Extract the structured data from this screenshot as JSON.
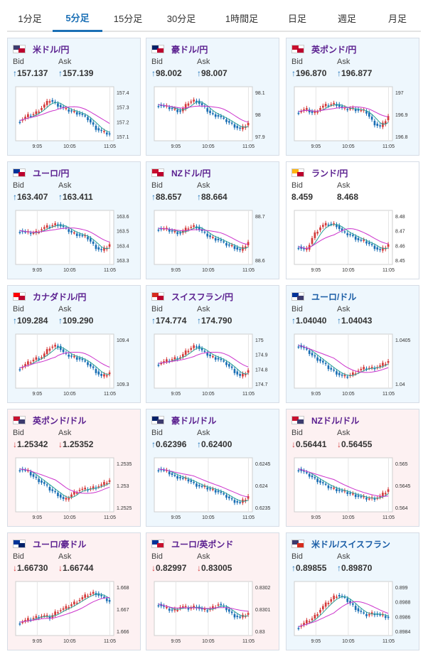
{
  "tabs": [
    {
      "label": "1分足",
      "active": false
    },
    {
      "label": "5分足",
      "active": true
    },
    {
      "label": "15分足",
      "active": false
    },
    {
      "label": "30分足",
      "active": false
    },
    {
      "label": "1時間足",
      "active": false
    },
    {
      "label": "日足",
      "active": false
    },
    {
      "label": "週足",
      "active": false
    },
    {
      "label": "月足",
      "active": false
    }
  ],
  "bid_label": "Bid",
  "ask_label": "Ask",
  "x_ticks": [
    "9:05",
    "10:05",
    "11:05"
  ],
  "colors": {
    "up": "#1a6fb5",
    "down": "#d43a3a",
    "ma_short": "#2aa198",
    "ma_long": "#cc33cc"
  },
  "cards": [
    {
      "pair": "米ドル/円",
      "flag": "us-jp-flag-icon",
      "dir": "up",
      "bid": "157.137",
      "ask": "157.139",
      "y_ticks": [
        "157.4",
        "157.3",
        "157.2",
        "157.1"
      ],
      "trend": [
        0.35,
        0.45,
        0.5,
        0.65,
        0.8,
        0.7,
        0.6,
        0.55,
        0.5,
        0.4,
        0.2,
        0.1,
        0.05
      ]
    },
    {
      "pair": "豪ドル/円",
      "flag": "au-jp-flag-icon",
      "dir": "up",
      "bid": "98.002",
      "ask": "98.007",
      "y_ticks": [
        "98.1",
        "98",
        "97.9"
      ],
      "trend": [
        0.7,
        0.65,
        0.6,
        0.55,
        0.75,
        0.8,
        0.65,
        0.5,
        0.45,
        0.35,
        0.25,
        0.15,
        0.3
      ]
    },
    {
      "pair": "英ポンド/円",
      "flag": "gb-jp-flag-icon",
      "dir": "up",
      "bid": "196.870",
      "ask": "196.877",
      "y_ticks": [
        "197",
        "196.9",
        "196.8"
      ],
      "trend": [
        0.55,
        0.6,
        0.5,
        0.65,
        0.7,
        0.72,
        0.6,
        0.62,
        0.58,
        0.55,
        0.3,
        0.2,
        0.45
      ]
    },
    {
      "pair": "ユーロ/円",
      "flag": "eu-jp-flag-icon",
      "dir": "up",
      "bid": "163.407",
      "ask": "163.411",
      "y_ticks": [
        "163.6",
        "163.5",
        "163.4",
        "163.3"
      ],
      "trend": [
        0.65,
        0.6,
        0.6,
        0.7,
        0.75,
        0.8,
        0.7,
        0.6,
        0.55,
        0.5,
        0.3,
        0.2,
        0.35
      ]
    },
    {
      "pair": "NZドル/円",
      "flag": "nz-jp-flag-icon",
      "dir": "up",
      "bid": "88.657",
      "ask": "88.664",
      "y_ticks": [
        "88.7",
        "88.6"
      ],
      "trend": [
        0.7,
        0.68,
        0.62,
        0.6,
        0.72,
        0.75,
        0.6,
        0.5,
        0.45,
        0.35,
        0.3,
        0.2,
        0.4
      ]
    },
    {
      "pair": "ランド/円",
      "flag": "za-jp-flag-icon",
      "dir": "neutral",
      "bid": "8.459",
      "ask": "8.468",
      "y_ticks": [
        "8.48",
        "8.47",
        "8.46",
        "8.45"
      ],
      "trend": [
        0.3,
        0.2,
        0.55,
        0.75,
        0.8,
        0.78,
        0.6,
        0.55,
        0.45,
        0.4,
        0.3,
        0.2,
        0.35
      ]
    },
    {
      "pair": "カナダドル/円",
      "flag": "ca-jp-flag-icon",
      "dir": "up",
      "bid": "109.284",
      "ask": "109.290",
      "y_ticks": [
        "109.4",
        "109.3"
      ],
      "trend": [
        0.35,
        0.45,
        0.55,
        0.6,
        0.8,
        0.85,
        0.65,
        0.6,
        0.55,
        0.45,
        0.3,
        0.15,
        0.25
      ]
    },
    {
      "pair": "スイスフラン/円",
      "flag": "ch-jp-flag-icon",
      "dir": "up",
      "bid": "174.774",
      "ask": "174.790",
      "y_ticks": [
        "175",
        "174.9",
        "174.8",
        "174.7"
      ],
      "trend": [
        0.45,
        0.5,
        0.55,
        0.6,
        0.75,
        0.85,
        0.7,
        0.6,
        0.55,
        0.45,
        0.3,
        0.15,
        0.3
      ]
    },
    {
      "pair": "ユーロ/ドル",
      "flag": "eu-us-flag-icon",
      "dir": "up",
      "name_blue": true,
      "bid": "1.04040",
      "ask": "1.04043",
      "y_ticks": [
        "1.0405",
        "1.04"
      ],
      "trend": [
        0.85,
        0.75,
        0.6,
        0.5,
        0.35,
        0.25,
        0.15,
        0.2,
        0.3,
        0.35,
        0.35,
        0.4,
        0.5
      ]
    },
    {
      "pair": "英ポンド/ドル",
      "flag": "gb-us-flag-icon",
      "dir": "down",
      "bid": "1.25342",
      "ask": "1.25352",
      "y_ticks": [
        "1.2535",
        "1.253",
        "1.2525"
      ],
      "trend": [
        0.85,
        0.8,
        0.65,
        0.55,
        0.4,
        0.3,
        0.15,
        0.3,
        0.4,
        0.4,
        0.45,
        0.5,
        0.6
      ]
    },
    {
      "pair": "豪ドル/ドル",
      "flag": "au-us-flag-icon",
      "dir": "up",
      "bid": "0.62396",
      "ask": "0.62400",
      "y_ticks": [
        "0.6245",
        "0.624",
        "0.6235"
      ],
      "trend": [
        0.85,
        0.8,
        0.7,
        0.65,
        0.6,
        0.5,
        0.45,
        0.4,
        0.35,
        0.25,
        0.15,
        0.1,
        0.25
      ]
    },
    {
      "pair": "NZドル/ドル",
      "flag": "nz-us-flag-icon",
      "dir": "down",
      "bid": "0.56441",
      "ask": "0.56455",
      "y_ticks": [
        "0.565",
        "0.5645",
        "0.564"
      ],
      "trend": [
        0.85,
        0.75,
        0.65,
        0.55,
        0.45,
        0.4,
        0.35,
        0.3,
        0.25,
        0.2,
        0.2,
        0.25,
        0.4
      ]
    },
    {
      "pair": "ユーロ/豪ドル",
      "flag": "eu-au-flag-icon",
      "dir": "down",
      "bid": "1.66730",
      "ask": "1.66744",
      "y_ticks": [
        "1.668",
        "1.667",
        "1.666"
      ],
      "trend": [
        0.2,
        0.25,
        0.3,
        0.35,
        0.3,
        0.45,
        0.5,
        0.6,
        0.7,
        0.8,
        0.85,
        0.75,
        0.65
      ]
    },
    {
      "pair": "ユーロ/英ポンド",
      "flag": "eu-gb-flag-icon",
      "dir": "down",
      "bid": "0.82997",
      "ask": "0.83005",
      "y_ticks": [
        "0.8302",
        "0.8301",
        "0.83"
      ],
      "trend": [
        0.6,
        0.5,
        0.45,
        0.55,
        0.5,
        0.55,
        0.45,
        0.5,
        0.6,
        0.5,
        0.35,
        0.3,
        0.4
      ]
    },
    {
      "pair": "米ドル/スイスフラン",
      "flag": "us-ch-flag-icon",
      "dir": "up",
      "name_blue": true,
      "bid": "0.89855",
      "ask": "0.89870",
      "y_ticks": [
        "0.899",
        "0.8988",
        "0.8986",
        "0.8984"
      ],
      "trend": [
        0.1,
        0.2,
        0.3,
        0.5,
        0.65,
        0.8,
        0.75,
        0.6,
        0.45,
        0.35,
        0.4,
        0.35,
        0.3
      ]
    }
  ]
}
